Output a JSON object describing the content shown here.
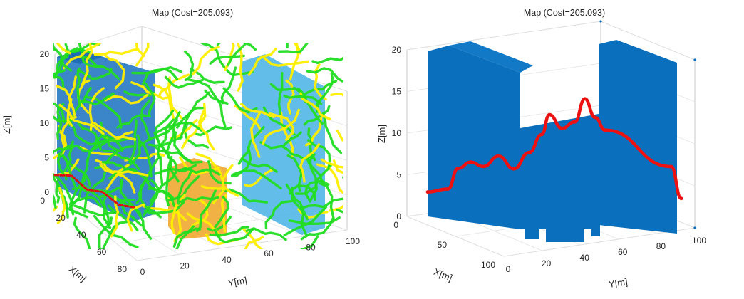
{
  "chart_data": [
    {
      "type": "3d-scatter",
      "title": "Map (Cost=205.093)",
      "xlabel": "X[m]",
      "ylabel": "Y[m]",
      "zlabel": "Z[m]",
      "xlim": [
        0,
        80
      ],
      "ylim": [
        0,
        100
      ],
      "zlim": [
        0,
        20
      ],
      "x_ticks": [
        "0",
        "20",
        "40",
        "60",
        "80"
      ],
      "y_ticks": [
        "0",
        "20",
        "40",
        "60",
        "80",
        "100"
      ],
      "z_ticks": [
        "0",
        "5",
        "10",
        "15",
        "20"
      ],
      "grid": true,
      "colors": {
        "obstacle_front": "#2a7cc4",
        "obstacle_back": "#55b8e6",
        "goal_block": "#f0a830",
        "explored_a": "#22dd22",
        "explored_b": "#ffee00",
        "path": "#dd1111"
      },
      "path": [
        {
          "x": 0,
          "y": 0,
          "z": 2.5
        },
        {
          "x": 10,
          "y": 6,
          "z": 3.4
        },
        {
          "x": 20,
          "y": 11,
          "z": 2.4
        },
        {
          "x": 30,
          "y": 16,
          "z": 3.1
        },
        {
          "x": 40,
          "y": 22,
          "z": 2.2
        },
        {
          "x": 50,
          "y": 28,
          "z": 2.8
        }
      ]
    },
    {
      "type": "3d-scatter",
      "title": "Map (Cost=205.093)",
      "xlabel": "X[m]",
      "ylabel": "Y[m]",
      "zlabel": "Z[m]",
      "xlim": [
        0,
        100
      ],
      "ylim": [
        0,
        100
      ],
      "zlim": [
        0,
        20
      ],
      "x_ticks": [
        "0",
        "50",
        "100"
      ],
      "y_ticks": [
        "0",
        "20",
        "40",
        "60",
        "80",
        "100"
      ],
      "z_ticks": [
        "0",
        "5",
        "10",
        "15",
        "20"
      ],
      "grid": true,
      "colors": {
        "obstacle": "#0a6fbd",
        "path": "#ee1111"
      },
      "path": [
        {
          "x": 50,
          "y": 0,
          "z": 2.6
        },
        {
          "x": 50,
          "y": 8,
          "z": 3.0
        },
        {
          "x": 50,
          "y": 12,
          "z": 5.5
        },
        {
          "x": 50,
          "y": 17,
          "z": 6.3
        },
        {
          "x": 50,
          "y": 22,
          "z": 5.8
        },
        {
          "x": 50,
          "y": 28,
          "z": 7.1
        },
        {
          "x": 50,
          "y": 34,
          "z": 5.6
        },
        {
          "x": 50,
          "y": 40,
          "z": 7.6
        },
        {
          "x": 50,
          "y": 45,
          "z": 9.8
        },
        {
          "x": 50,
          "y": 48,
          "z": 12.2
        },
        {
          "x": 50,
          "y": 53,
          "z": 10.6
        },
        {
          "x": 50,
          "y": 58,
          "z": 11.4
        },
        {
          "x": 50,
          "y": 62,
          "z": 14.2
        },
        {
          "x": 50,
          "y": 66,
          "z": 12.0
        },
        {
          "x": 50,
          "y": 70,
          "z": 10.5
        },
        {
          "x": 50,
          "y": 96,
          "z": 6.3
        },
        {
          "x": 50,
          "y": 100,
          "z": 2.5
        }
      ]
    }
  ]
}
